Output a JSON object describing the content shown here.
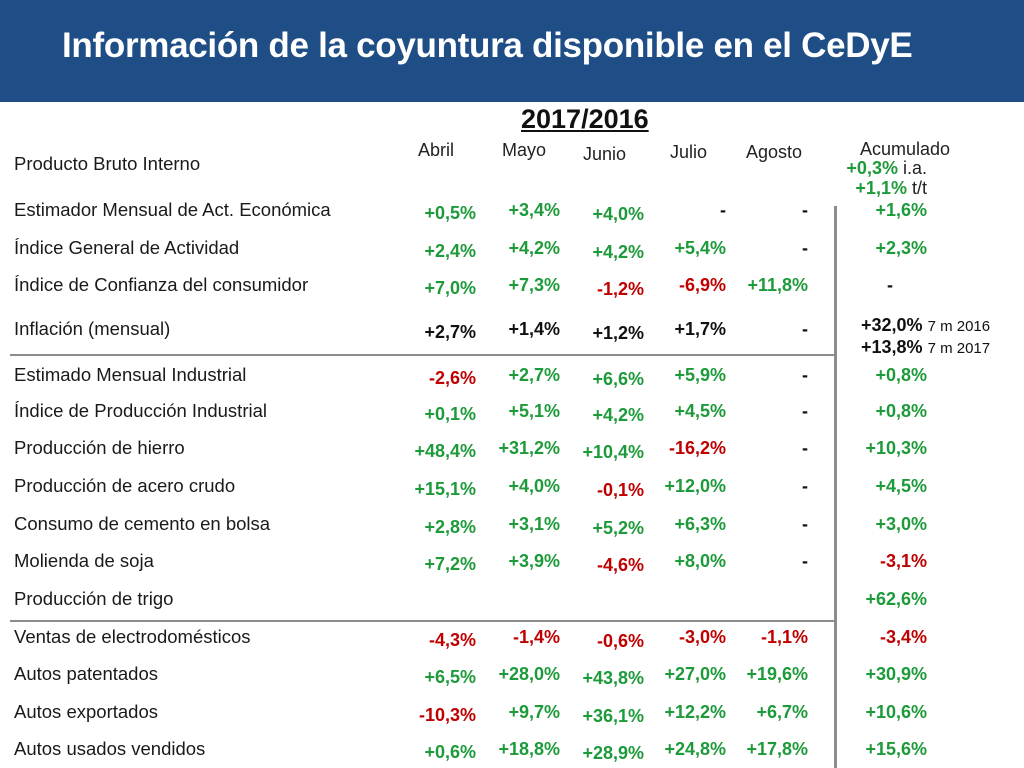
{
  "slide": {
    "title": "Información de la coyuntura disponible en el CeDyE",
    "period": "2017/2016",
    "first_row_label": "Producto Bruto Interno",
    "columns": {
      "abril": "Abril",
      "mayo": "Mayo",
      "junio": "Junio",
      "julio": "Julio",
      "agosto": "Agosto",
      "acumulado": "Acumulado"
    },
    "pbi_acumulado": {
      "ia_value": "+0,3%",
      "ia_unit": "i.a.",
      "tt_value": "+1,1%",
      "tt_unit": "t/t"
    },
    "inflacion_acumulado": {
      "v1": "+32,0%",
      "v1_note": "7 m 2016",
      "v2": "+13,8%",
      "v2_note": "7 m 2017"
    }
  },
  "rows": [
    {
      "label": "Estimador Mensual de Act. Económica",
      "abril": "+0,5%",
      "mayo": "+3,4%",
      "junio": "+4,0%",
      "julio": "-",
      "agosto": "-",
      "acumulado": "+1,6%"
    },
    {
      "label": "Índice General de Actividad",
      "abril": "+2,4%",
      "mayo": "+4,2%",
      "junio": "+4,2%",
      "julio": "+5,4%",
      "agosto": "-",
      "acumulado": "+2,3%"
    },
    {
      "label": "Índice de Confianza del consumidor",
      "abril": "+7,0%",
      "mayo": "+7,3%",
      "junio": "-1,2%",
      "julio": "-6,9%",
      "agosto": "+11,8%",
      "acumulado": "-"
    },
    {
      "label": "Inflación (mensual)",
      "abril": "+2,7%",
      "mayo": "+1,4%",
      "junio": "+1,2%",
      "julio": "+1,7%",
      "agosto": "-",
      "acumulado": ""
    },
    {
      "label": "Estimado Mensual Industrial",
      "abril": "-2,6%",
      "mayo": "+2,7%",
      "junio": "+6,6%",
      "julio": "+5,9%",
      "agosto": "-",
      "acumulado": "+0,8%"
    },
    {
      "label": "Índice de Producción Industrial",
      "abril": "+0,1%",
      "mayo": "+5,1%",
      "junio": "+4,2%",
      "julio": "+4,5%",
      "agosto": "-",
      "acumulado": "+0,8%"
    },
    {
      "label": "Producción de hierro",
      "abril": "+48,4%",
      "mayo": "+31,2%",
      "junio": "+10,4%",
      "julio": "-16,2%",
      "agosto": "-",
      "acumulado": "+10,3%"
    },
    {
      "label": "Producción de acero crudo",
      "abril": "+15,1%",
      "mayo": "+4,0%",
      "junio": "-0,1%",
      "julio": "+12,0%",
      "agosto": "-",
      "acumulado": "+4,5%"
    },
    {
      "label": "Consumo de cemento en bolsa",
      "abril": "+2,8%",
      "mayo": "+3,1%",
      "junio": "+5,2%",
      "julio": "+6,3%",
      "agosto": "-",
      "acumulado": "+3,0%"
    },
    {
      "label": "Molienda de soja",
      "abril": "+7,2%",
      "mayo": "+3,9%",
      "junio": "-4,6%",
      "julio": "+8,0%",
      "agosto": "-",
      "acumulado": "-3,1%"
    },
    {
      "label": "Producción de trigo",
      "abril": "",
      "mayo": "",
      "junio": "",
      "julio": "",
      "agosto": "",
      "acumulado": "+62,6%"
    },
    {
      "label": "Ventas de electrodomésticos",
      "abril": "-4,3%",
      "mayo": "-1,4%",
      "junio": "-0,6%",
      "julio": "-3,0%",
      "agosto": "-1,1%",
      "acumulado": "-3,4%"
    },
    {
      "label": "Autos patentados",
      "abril": "+6,5%",
      "mayo": "+28,0%",
      "junio": "+43,8%",
      "julio": "+27,0%",
      "agosto": "+19,6%",
      "acumulado": "+30,9%"
    },
    {
      "label": "Autos exportados",
      "abril": "-10,3%",
      "mayo": "+9,7%",
      "junio": "+36,1%",
      "julio": "+12,2%",
      "agosto": "+6,7%",
      "acumulado": "+10,6%"
    },
    {
      "label": "Autos usados vendidos",
      "abril": "+0,6%",
      "mayo": "+18,8%",
      "junio": "+28,9%",
      "julio": "+24,8%",
      "agosto": "+17,8%",
      "acumulado": "+15,6%"
    }
  ],
  "colors": {
    "title_bar": "#1f4e86",
    "positive": "#1d9a3a",
    "negative": "#c00000",
    "neutral": "#111111"
  }
}
